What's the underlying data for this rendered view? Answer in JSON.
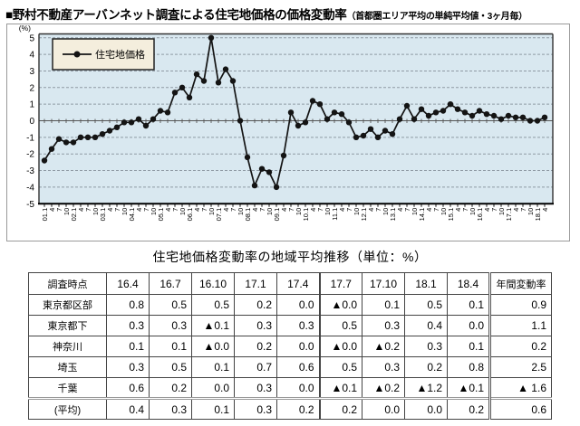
{
  "title": {
    "main": "■野村不動産アーバンネット調査による住宅地価格の価格変動率",
    "sub": "（首都圏エリア平均の単純平均値・3ヶ月毎）"
  },
  "chart_data": {
    "type": "line",
    "unit_label": "(%)",
    "legend": "住宅地価格",
    "ylabel": "",
    "xlabel": "",
    "ylim": [
      -5,
      5
    ],
    "yticks": [
      5,
      4,
      3,
      2,
      1,
      0,
      -1,
      -2,
      -3,
      -4,
      -5
    ],
    "grid": "horizontal-dashed",
    "legend_position": "top-left-inside",
    "plot_bg": "#d9e8f0",
    "legend_bg": "#f4eedd",
    "line_color": "#141414",
    "x_labels": [
      "01.1",
      "4",
      "7",
      "10",
      "02.1",
      "4",
      "7",
      "10",
      "03.1",
      "4",
      "7",
      "10",
      "04.1",
      "4",
      "7",
      "10",
      "05.1",
      "4",
      "7",
      "10",
      "06.1",
      "4",
      "7",
      "10",
      "07.1",
      "4",
      "7",
      "10",
      "08.1",
      "4",
      "7",
      "10",
      "09.1",
      "4",
      "7",
      "10",
      "10.1",
      "4",
      "7",
      "10",
      "11.1",
      "4",
      "7",
      "10",
      "12.1",
      "4",
      "7",
      "10",
      "13.1",
      "4",
      "7",
      "10",
      "14.1",
      "4",
      "7",
      "10",
      "15.1",
      "4",
      "7",
      "10",
      "16.1",
      "4",
      "7",
      "10",
      "17.1",
      "4",
      "7",
      "10",
      "18.1",
      "4"
    ],
    "values": [
      -2.4,
      -1.7,
      -1.1,
      -1.3,
      -1.3,
      -1.0,
      -1.0,
      -1.0,
      -0.8,
      -0.6,
      -0.4,
      -0.1,
      -0.1,
      0.1,
      -0.3,
      0.1,
      0.6,
      0.5,
      1.7,
      2.0,
      1.4,
      2.8,
      2.4,
      5.0,
      2.3,
      3.1,
      2.4,
      0.0,
      -2.2,
      -3.9,
      -2.9,
      -3.1,
      -4.0,
      -2.1,
      0.5,
      -0.3,
      -0.1,
      1.2,
      1.0,
      0.1,
      0.5,
      0.4,
      -0.1,
      -1.0,
      -0.9,
      -0.5,
      -1.0,
      -0.6,
      -0.8,
      0.1,
      0.9,
      0.1,
      0.7,
      0.3,
      0.5,
      0.6,
      1.0,
      0.7,
      0.5,
      0.3,
      0.6,
      0.4,
      0.3,
      0.1,
      0.3,
      0.2,
      0.2,
      0.0,
      0.0,
      0.2
    ]
  },
  "table": {
    "title": "住宅地価格変動率の地域平均推移（単位：%）",
    "header": [
      "調査時点",
      "16.4",
      "16.7",
      "16.10",
      "17.1",
      "17.4",
      "17.7",
      "17.10",
      "18.1",
      "18.4",
      "年間変動率"
    ],
    "rows": [
      {
        "label": "東京都区部",
        "values": [
          "0.8",
          "0.5",
          "0.5",
          "0.2",
          "0.0",
          "▲0.0",
          "0.1",
          "0.5",
          "0.1",
          "0.9"
        ]
      },
      {
        "label": "東京都下",
        "values": [
          "0.3",
          "0.3",
          "▲0.1",
          "0.3",
          "0.3",
          "0.5",
          "0.3",
          "0.4",
          "0.0",
          "1.1"
        ]
      },
      {
        "label": "神奈川",
        "values": [
          "0.1",
          "0.1",
          "▲0.0",
          "0.2",
          "0.0",
          "▲0.0",
          "▲0.2",
          "0.3",
          "0.1",
          "0.2"
        ]
      },
      {
        "label": "埼玉",
        "values": [
          "0.3",
          "0.5",
          "0.1",
          "0.7",
          "0.6",
          "0.5",
          "0.3",
          "0.2",
          "0.8",
          "2.5"
        ]
      },
      {
        "label": "千葉",
        "values": [
          "0.6",
          "0.2",
          "0.0",
          "0.3",
          "0.0",
          "▲0.1",
          "▲0.2",
          "▲1.2",
          "▲0.1",
          "▲ 1.6"
        ]
      },
      {
        "label": "(平均)",
        "values": [
          "0.4",
          "0.3",
          "0.1",
          "0.3",
          "0.2",
          "0.2",
          "0.0",
          "0.0",
          "0.2",
          "0.6"
        ]
      }
    ]
  }
}
